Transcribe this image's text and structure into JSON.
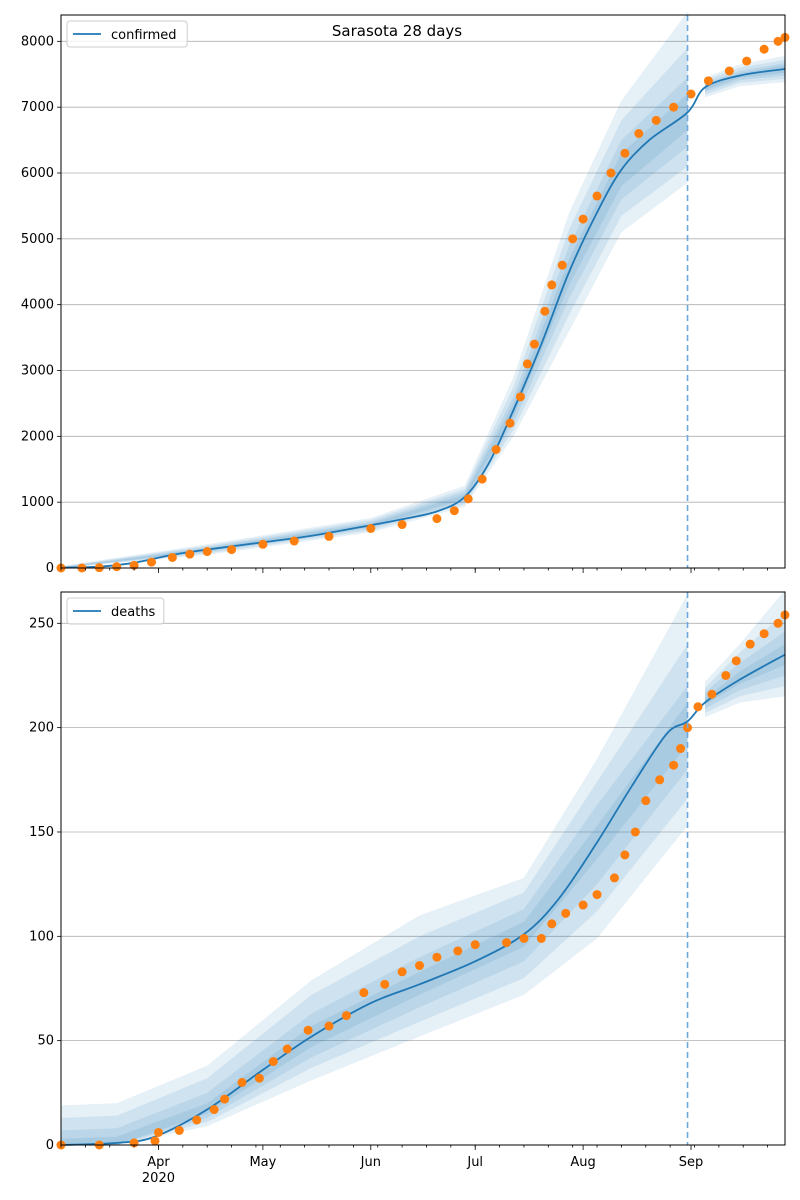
{
  "figure": {
    "title": "Sarasota 28 days"
  },
  "colors": {
    "model_line": "#1f77b4",
    "observed": "#ff7f0e",
    "band": "#1f77b4",
    "grid": "#b0b0b0",
    "forecast_line": "#6fa8dc"
  },
  "x_axis": {
    "ticks": [
      {
        "date": "2020-04-01",
        "label": "Apr",
        "sublabel": "2020"
      },
      {
        "date": "2020-05-01",
        "label": "May",
        "sublabel": ""
      },
      {
        "date": "2020-06-01",
        "label": "Jun",
        "sublabel": ""
      },
      {
        "date": "2020-07-01",
        "label": "Jul",
        "sublabel": ""
      },
      {
        "date": "2020-08-01",
        "label": "Aug",
        "sublabel": ""
      },
      {
        "date": "2020-09-01",
        "label": "Sep",
        "sublabel": ""
      }
    ],
    "range": [
      "2020-03-04",
      "2020-09-28"
    ],
    "forecast_start": "2020-08-31"
  },
  "chart_data": [
    {
      "type": "line",
      "legend": "confirmed",
      "legend_position": "top-left",
      "grid": "y",
      "ylim": [
        0,
        8400
      ],
      "y_ticks": [
        0,
        1000,
        2000,
        3000,
        4000,
        5000,
        6000,
        7000,
        8000
      ],
      "model": [
        [
          "2020-03-04",
          5
        ],
        [
          "2020-03-15",
          20
        ],
        [
          "2020-03-25",
          80
        ],
        [
          "2020-04-05",
          200
        ],
        [
          "2020-04-15",
          280
        ],
        [
          "2020-05-01",
          390
        ],
        [
          "2020-05-15",
          490
        ],
        [
          "2020-06-01",
          650
        ],
        [
          "2020-06-10",
          740
        ],
        [
          "2020-06-20",
          860
        ],
        [
          "2020-06-28",
          1080
        ],
        [
          "2020-07-05",
          1600
        ],
        [
          "2020-07-12",
          2400
        ],
        [
          "2020-07-20",
          3400
        ],
        [
          "2020-07-28",
          4500
        ],
        [
          "2020-08-05",
          5400
        ],
        [
          "2020-08-12",
          6050
        ],
        [
          "2020-08-20",
          6500
        ],
        [
          "2020-08-31",
          6920
        ],
        [
          "2020-09-05",
          7300
        ],
        [
          "2020-09-15",
          7480
        ],
        [
          "2020-09-28",
          7580
        ]
      ],
      "bands": [
        [
          [
            "2020-03-04",
            0,
            30
          ],
          [
            "2020-04-15",
            200,
            360
          ],
          [
            "2020-06-01",
            540,
            760
          ],
          [
            "2020-06-28",
            930,
            1250
          ],
          [
            "2020-07-12",
            2000,
            2900
          ],
          [
            "2020-07-28",
            3600,
            5400
          ],
          [
            "2020-08-12",
            5100,
            7100
          ],
          [
            "2020-08-31",
            5850,
            8450
          ],
          [
            "2020-09-05",
            7150,
            7450
          ],
          [
            "2020-09-15",
            7320,
            7650
          ],
          [
            "2020-09-28",
            7380,
            7780
          ]
        ],
        [
          [
            "2020-03-04",
            0,
            20
          ],
          [
            "2020-04-15",
            220,
            340
          ],
          [
            "2020-06-01",
            570,
            730
          ],
          [
            "2020-06-28",
            970,
            1200
          ],
          [
            "2020-07-12",
            2100,
            2750
          ],
          [
            "2020-07-28",
            3850,
            5150
          ],
          [
            "2020-08-12",
            5350,
            6800
          ],
          [
            "2020-08-31",
            6100,
            7900
          ],
          [
            "2020-09-05",
            7190,
            7410
          ],
          [
            "2020-09-15",
            7370,
            7600
          ],
          [
            "2020-09-28",
            7430,
            7720
          ]
        ],
        [
          [
            "2020-03-04",
            0,
            12
          ],
          [
            "2020-04-15",
            240,
            320
          ],
          [
            "2020-06-01",
            600,
            700
          ],
          [
            "2020-06-28",
            1010,
            1160
          ],
          [
            "2020-07-12",
            2200,
            2600
          ],
          [
            "2020-07-28",
            4100,
            4900
          ],
          [
            "2020-08-12",
            5600,
            6500
          ],
          [
            "2020-08-31",
            6400,
            7450
          ],
          [
            "2020-09-05",
            7230,
            7370
          ],
          [
            "2020-09-15",
            7410,
            7550
          ],
          [
            "2020-09-28",
            7480,
            7670
          ]
        ],
        [
          [
            "2020-03-04",
            0,
            8
          ],
          [
            "2020-04-15",
            260,
            300
          ],
          [
            "2020-06-01",
            625,
            675
          ],
          [
            "2020-06-28",
            1045,
            1115
          ],
          [
            "2020-07-12",
            2300,
            2500
          ],
          [
            "2020-07-28",
            4300,
            4700
          ],
          [
            "2020-08-12",
            5800,
            6300
          ],
          [
            "2020-08-31",
            6650,
            7200
          ],
          [
            "2020-09-05",
            7260,
            7340
          ],
          [
            "2020-09-15",
            7445,
            7515
          ],
          [
            "2020-09-28",
            7520,
            7640
          ]
        ]
      ],
      "observed": [
        [
          "2020-03-04",
          0
        ],
        [
          "2020-03-10",
          0
        ],
        [
          "2020-03-15",
          5
        ],
        [
          "2020-03-20",
          20
        ],
        [
          "2020-03-25",
          40
        ],
        [
          "2020-03-30",
          90
        ],
        [
          "2020-04-05",
          160
        ],
        [
          "2020-04-10",
          210
        ],
        [
          "2020-04-15",
          250
        ],
        [
          "2020-04-22",
          280
        ],
        [
          "2020-05-01",
          360
        ],
        [
          "2020-05-10",
          410
        ],
        [
          "2020-05-20",
          480
        ],
        [
          "2020-06-01",
          600
        ],
        [
          "2020-06-10",
          660
        ],
        [
          "2020-06-20",
          750
        ],
        [
          "2020-06-25",
          870
        ],
        [
          "2020-06-29",
          1050
        ],
        [
          "2020-07-03",
          1350
        ],
        [
          "2020-07-07",
          1800
        ],
        [
          "2020-07-11",
          2200
        ],
        [
          "2020-07-14",
          2600
        ],
        [
          "2020-07-16",
          3100
        ],
        [
          "2020-07-18",
          3400
        ],
        [
          "2020-07-21",
          3900
        ],
        [
          "2020-07-23",
          4300
        ],
        [
          "2020-07-26",
          4600
        ],
        [
          "2020-07-29",
          5000
        ],
        [
          "2020-08-01",
          5300
        ],
        [
          "2020-08-05",
          5650
        ],
        [
          "2020-08-09",
          6000
        ],
        [
          "2020-08-13",
          6300
        ],
        [
          "2020-08-17",
          6600
        ],
        [
          "2020-08-22",
          6800
        ],
        [
          "2020-08-27",
          7000
        ],
        [
          "2020-09-01",
          7200
        ],
        [
          "2020-09-06",
          7400
        ],
        [
          "2020-09-12",
          7550
        ],
        [
          "2020-09-17",
          7700
        ],
        [
          "2020-09-22",
          7880
        ],
        [
          "2020-09-26",
          8000
        ],
        [
          "2020-09-28",
          8060
        ]
      ]
    },
    {
      "type": "line",
      "legend": "deaths",
      "legend_position": "top-left",
      "grid": "y",
      "ylim": [
        0,
        265
      ],
      "y_ticks": [
        0,
        50,
        100,
        150,
        200,
        250
      ],
      "model": [
        [
          "2020-03-04",
          0
        ],
        [
          "2020-03-20",
          1
        ],
        [
          "2020-03-31",
          4
        ],
        [
          "2020-04-15",
          17
        ],
        [
          "2020-05-01",
          36
        ],
        [
          "2020-05-15",
          52
        ],
        [
          "2020-06-01",
          68
        ],
        [
          "2020-06-15",
          77
        ],
        [
          "2020-07-01",
          88
        ],
        [
          "2020-07-15",
          101
        ],
        [
          "2020-07-25",
          118
        ],
        [
          "2020-08-05",
          145
        ],
        [
          "2020-08-15",
          172
        ],
        [
          "2020-08-25",
          197
        ],
        [
          "2020-08-31",
          203
        ],
        [
          "2020-09-05",
          212
        ],
        [
          "2020-09-15",
          223
        ],
        [
          "2020-09-28",
          235
        ]
      ],
      "bands": [
        [
          [
            "2020-03-04",
            0,
            19
          ],
          [
            "2020-03-20",
            0,
            20
          ],
          [
            "2020-04-15",
            9,
            38
          ],
          [
            "2020-05-15",
            31,
            79
          ],
          [
            "2020-06-15",
            52,
            110
          ],
          [
            "2020-07-15",
            72,
            128
          ],
          [
            "2020-08-05",
            99,
            185
          ],
          [
            "2020-08-31",
            153,
            264
          ],
          [
            "2020-09-05",
            205,
            222
          ],
          [
            "2020-09-15",
            212,
            240
          ],
          [
            "2020-09-28",
            215,
            266
          ]
        ],
        [
          [
            "2020-03-04",
            0,
            13
          ],
          [
            "2020-03-20",
            0,
            14
          ],
          [
            "2020-04-15",
            11,
            32
          ],
          [
            "2020-05-15",
            37,
            72
          ],
          [
            "2020-06-15",
            59,
            100
          ],
          [
            "2020-07-15",
            80,
            121
          ],
          [
            "2020-08-05",
            112,
            174
          ],
          [
            "2020-08-31",
            166,
            240
          ],
          [
            "2020-09-05",
            207,
            219
          ],
          [
            "2020-09-15",
            215,
            236
          ],
          [
            "2020-09-28",
            220,
            255
          ]
        ],
        [
          [
            "2020-03-04",
            0,
            7
          ],
          [
            "2020-03-20",
            0,
            8
          ],
          [
            "2020-04-15",
            13,
            25
          ],
          [
            "2020-05-15",
            42,
            63
          ],
          [
            "2020-06-15",
            66,
            90
          ],
          [
            "2020-07-15",
            88,
            113
          ],
          [
            "2020-08-05",
            125,
            163
          ],
          [
            "2020-08-31",
            180,
            220
          ],
          [
            "2020-09-05",
            209,
            217
          ],
          [
            "2020-09-15",
            218,
            231
          ],
          [
            "2020-09-28",
            225,
            246
          ]
        ],
        [
          [
            "2020-03-04",
            0,
            3
          ],
          [
            "2020-03-20",
            0,
            4
          ],
          [
            "2020-04-15",
            15,
            20
          ],
          [
            "2020-05-15",
            47,
            57
          ],
          [
            "2020-06-15",
            72,
            83
          ],
          [
            "2020-07-15",
            95,
            107
          ],
          [
            "2020-08-05",
            137,
            153
          ],
          [
            "2020-08-31",
            192,
            212
          ],
          [
            "2020-09-05",
            211,
            214
          ],
          [
            "2020-09-15",
            221,
            227
          ],
          [
            "2020-09-28",
            230,
            240
          ]
        ]
      ],
      "observed": [
        [
          "2020-03-04",
          0
        ],
        [
          "2020-03-15",
          0
        ],
        [
          "2020-03-25",
          1
        ],
        [
          "2020-03-31",
          2
        ],
        [
          "2020-04-01",
          6
        ],
        [
          "2020-04-07",
          7
        ],
        [
          "2020-04-12",
          12
        ],
        [
          "2020-04-17",
          17
        ],
        [
          "2020-04-20",
          22
        ],
        [
          "2020-04-25",
          30
        ],
        [
          "2020-04-30",
          32
        ],
        [
          "2020-05-04",
          40
        ],
        [
          "2020-05-08",
          46
        ],
        [
          "2020-05-14",
          55
        ],
        [
          "2020-05-20",
          57
        ],
        [
          "2020-05-25",
          62
        ],
        [
          "2020-05-30",
          73
        ],
        [
          "2020-06-05",
          77
        ],
        [
          "2020-06-10",
          83
        ],
        [
          "2020-06-15",
          86
        ],
        [
          "2020-06-20",
          90
        ],
        [
          "2020-06-26",
          93
        ],
        [
          "2020-07-01",
          96
        ],
        [
          "2020-07-10",
          97
        ],
        [
          "2020-07-15",
          99
        ],
        [
          "2020-07-20",
          99
        ],
        [
          "2020-07-23",
          106
        ],
        [
          "2020-07-27",
          111
        ],
        [
          "2020-08-01",
          115
        ],
        [
          "2020-08-05",
          120
        ],
        [
          "2020-08-10",
          128
        ],
        [
          "2020-08-13",
          139
        ],
        [
          "2020-08-16",
          150
        ],
        [
          "2020-08-19",
          165
        ],
        [
          "2020-08-23",
          175
        ],
        [
          "2020-08-27",
          182
        ],
        [
          "2020-08-29",
          190
        ],
        [
          "2020-08-31",
          200
        ],
        [
          "2020-09-03",
          210
        ],
        [
          "2020-09-07",
          216
        ],
        [
          "2020-09-11",
          225
        ],
        [
          "2020-09-14",
          232
        ],
        [
          "2020-09-18",
          240
        ],
        [
          "2020-09-22",
          245
        ],
        [
          "2020-09-26",
          250
        ],
        [
          "2020-09-28",
          254
        ]
      ]
    }
  ]
}
